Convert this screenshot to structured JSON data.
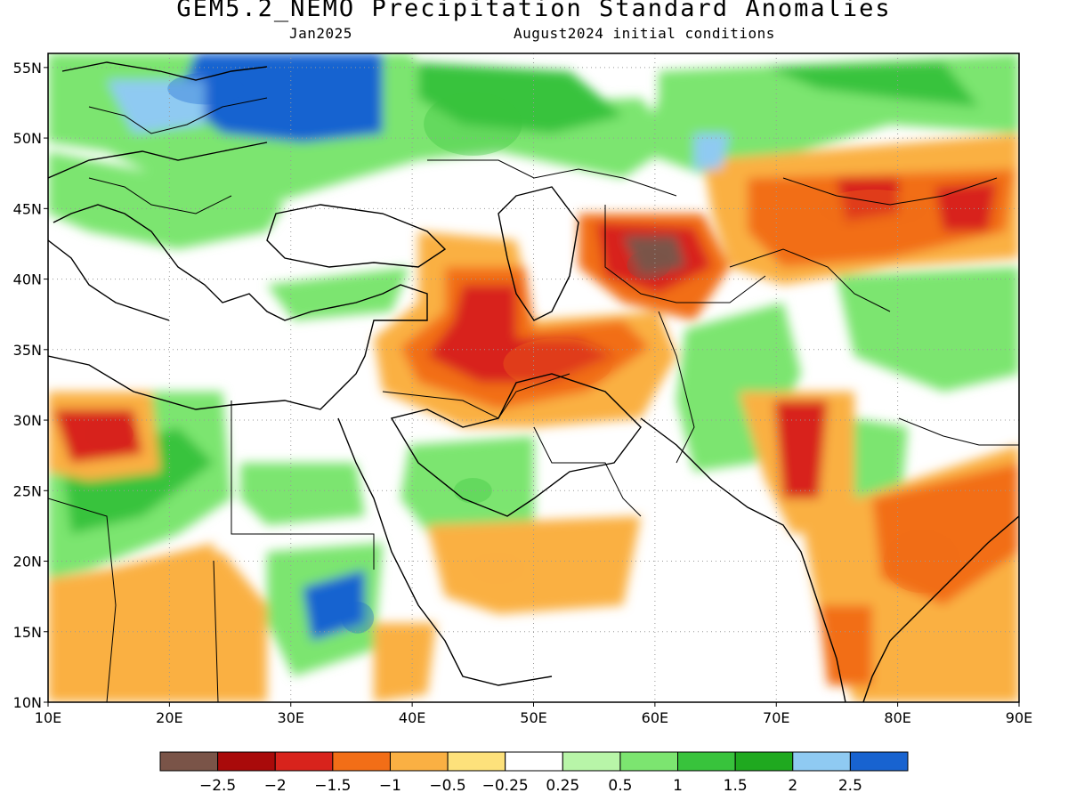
{
  "title": "GEM5.2_NEMO Precipitation Standard Anomalies",
  "subtitle_left": "Jan2025",
  "subtitle_right": "August2024 initial conditions",
  "map": {
    "lon_range": [
      10,
      90
    ],
    "lat_range": [
      10,
      56
    ],
    "lon_ticks": [
      {
        "value": 10,
        "label": "10E"
      },
      {
        "value": 20,
        "label": "20E"
      },
      {
        "value": 30,
        "label": "30E"
      },
      {
        "value": 40,
        "label": "40E"
      },
      {
        "value": 50,
        "label": "50E"
      },
      {
        "value": 60,
        "label": "60E"
      },
      {
        "value": 70,
        "label": "70E"
      },
      {
        "value": 80,
        "label": "80E"
      },
      {
        "value": 90,
        "label": "90E"
      }
    ],
    "lat_ticks": [
      {
        "value": 10,
        "label": "10N"
      },
      {
        "value": 15,
        "label": "15N"
      },
      {
        "value": 20,
        "label": "20N"
      },
      {
        "value": 25,
        "label": "25N"
      },
      {
        "value": 30,
        "label": "30N"
      },
      {
        "value": 35,
        "label": "35N"
      },
      {
        "value": 40,
        "label": "40N"
      },
      {
        "value": 45,
        "label": "45N"
      },
      {
        "value": 50,
        "label": "50N"
      },
      {
        "value": 55,
        "label": "55N"
      }
    ],
    "gridlines": "dotted",
    "anomaly_regions": [
      {
        "id": "central-europe-wet",
        "lon": 23,
        "lat": 53.5,
        "rx": 7,
        "ry": 2.5,
        "level": "2.5 to 3"
      },
      {
        "id": "russia-wet",
        "lon": 45,
        "lat": 51,
        "rx": 9,
        "ry": 5,
        "level": "1 to 2"
      },
      {
        "id": "caspian-east-dry",
        "lon": 59.5,
        "lat": 41,
        "rx": 4,
        "ry": 2.3,
        "level": "below -2.5"
      },
      {
        "id": "iraq-iran-dry",
        "lon": 52,
        "lat": 34,
        "rx": 10,
        "ry": 4,
        "level": "-2 to -1"
      },
      {
        "id": "kazakhstan-dry",
        "lon": 78,
        "lat": 45,
        "rx": 10,
        "ry": 3,
        "level": "-1.5 to -1"
      },
      {
        "id": "libya-dry",
        "lon": 15,
        "lat": 29,
        "rx": 4.5,
        "ry": 2.5,
        "level": "-2 to -1.5"
      },
      {
        "id": "sudan-wet",
        "lon": 35.5,
        "lat": 16,
        "rx": 3,
        "ry": 2.5,
        "level": "2.5 to 3"
      },
      {
        "id": "arabia-dry",
        "lon": 47,
        "lat": 19.5,
        "rx": 5,
        "ry": 2.5,
        "level": "-1 to -0.5"
      },
      {
        "id": "india-dry",
        "lon": 82,
        "lat": 20,
        "rx": 7,
        "ry": 5,
        "level": "-1.5 to -0.5"
      },
      {
        "id": "saudi-wet",
        "lon": 45,
        "lat": 25,
        "rx": 3.5,
        "ry": 2,
        "level": "1 to 2"
      }
    ]
  },
  "colorbar": {
    "boundaries": [
      "−2.5",
      "−2",
      "−1.5",
      "−1",
      "−0.5",
      "−0.25",
      "0.25",
      "0.5",
      "1",
      "1.5",
      "2",
      "2.5"
    ],
    "colors": [
      "#7a5448",
      "#a90a0a",
      "#d8231c",
      "#f26e17",
      "#fab043",
      "#fde17b",
      "#ffffff",
      "#b8f5a8",
      "#7ce570",
      "#38c33c",
      "#1fa91f",
      "#8fcaf2",
      "#1863d0"
    ]
  }
}
